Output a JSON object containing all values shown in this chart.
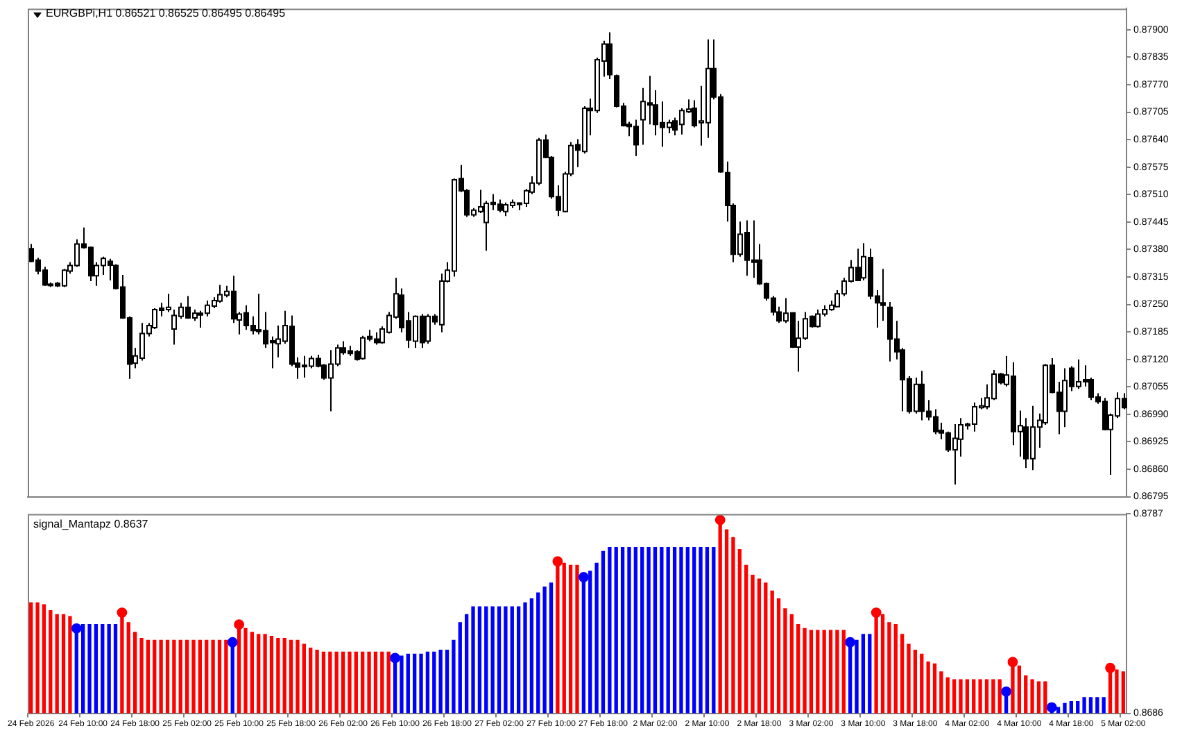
{
  "chart_data": [
    {
      "type": "candlestick",
      "title": "EURGBPi,H1 0.86521 0.86525 0.86495 0.86495",
      "categories": [
        null,
        null,
        null,
        null,
        null,
        null,
        null,
        null,
        null,
        null,
        null,
        null,
        null,
        null,
        null,
        null,
        null,
        null,
        null,
        null,
        null,
        null,
        null,
        null,
        null,
        null,
        null,
        null,
        null,
        null,
        null,
        null,
        null,
        null,
        null,
        null,
        null,
        null,
        null,
        null,
        null,
        null,
        null,
        null,
        null,
        null,
        null,
        null,
        null,
        null,
        null,
        null,
        null,
        null,
        null,
        null,
        null,
        null,
        null,
        null,
        null,
        null,
        null,
        null,
        null,
        null,
        null,
        null,
        null,
        null,
        null,
        null,
        null,
        null,
        null,
        null,
        null,
        null,
        null,
        null,
        null,
        null,
        null,
        null,
        null,
        null,
        null,
        null,
        null,
        null,
        null,
        null,
        null,
        null,
        null,
        null,
        null,
        null,
        null,
        null,
        null,
        null,
        null,
        null,
        null,
        null,
        null,
        null,
        null,
        null,
        null,
        null,
        null,
        null,
        null,
        null,
        null,
        null,
        null,
        null,
        null,
        null,
        null,
        null,
        null,
        null,
        null,
        null,
        null,
        null,
        null,
        null,
        null,
        null,
        null,
        null,
        null,
        null,
        null,
        null,
        null,
        null,
        null,
        null,
        null,
        null,
        null,
        null,
        null,
        null,
        null,
        null,
        null,
        null,
        null,
        null,
        null,
        null,
        null,
        null,
        null,
        null,
        null,
        null,
        null,
        null,
        null,
        null,
        null
      ],
      "ohlc": [
        [
          0.87382,
          0.87393,
          0.8735,
          0.87352
        ],
        [
          0.87355,
          0.8736,
          0.87321,
          0.87329
        ],
        [
          0.87331,
          0.87339,
          0.87294,
          0.87296
        ],
        [
          0.87296,
          0.87302,
          0.87291,
          0.87298
        ],
        [
          0.873,
          0.87303,
          0.87291,
          0.87294
        ],
        [
          0.87294,
          0.87334,
          0.87291,
          0.87331
        ],
        [
          0.87329,
          0.8735,
          0.87323,
          0.87342
        ],
        [
          0.87342,
          0.87404,
          0.87339,
          0.87393
        ],
        [
          0.87393,
          0.87432,
          0.87382,
          0.87385
        ],
        [
          0.87385,
          0.87387,
          0.87305,
          0.87318
        ],
        [
          0.87318,
          0.8735,
          0.87294,
          0.87342
        ],
        [
          0.87342,
          0.87363,
          0.8732,
          0.87359
        ],
        [
          0.87352,
          0.87358,
          0.87307,
          0.87343
        ],
        [
          0.87342,
          0.87345,
          0.87286,
          0.87288
        ],
        [
          0.87291,
          0.8732,
          0.87216,
          0.87218
        ],
        [
          0.87218,
          0.87222,
          0.87074,
          0.87109
        ],
        [
          0.87111,
          0.87147,
          0.87099,
          0.87128
        ],
        [
          0.87123,
          0.87206,
          0.87117,
          0.87181
        ],
        [
          0.87181,
          0.87206,
          0.87174,
          0.872
        ],
        [
          0.87195,
          0.87241,
          0.87192,
          0.87238
        ],
        [
          0.87241,
          0.87254,
          0.87222,
          0.87236
        ],
        [
          0.87238,
          0.87275,
          0.87232,
          0.87243
        ],
        [
          0.87192,
          0.87238,
          0.87155,
          0.87224
        ],
        [
          0.87222,
          0.87254,
          0.87216,
          0.87243
        ],
        [
          0.87243,
          0.8727,
          0.87216,
          0.87218
        ],
        [
          0.87218,
          0.87238,
          0.87211,
          0.87229
        ],
        [
          0.87229,
          0.87235,
          0.87195,
          0.87225
        ],
        [
          0.87229,
          0.87259,
          0.87222,
          0.87248
        ],
        [
          0.87246,
          0.87267,
          0.87241,
          0.87259
        ],
        [
          0.87258,
          0.87296,
          0.87254,
          0.87273
        ],
        [
          0.87272,
          0.87294,
          0.87267,
          0.87281
        ],
        [
          0.87281,
          0.87318,
          0.87206,
          0.87216
        ],
        [
          0.87213,
          0.87232,
          0.87179,
          0.87227
        ],
        [
          0.8723,
          0.87248,
          0.8719,
          0.872
        ],
        [
          0.872,
          0.87222,
          0.87179,
          0.87188
        ],
        [
          0.8719,
          0.87275,
          0.87179,
          0.87186
        ],
        [
          0.87188,
          0.87232,
          0.87147,
          0.87157
        ],
        [
          0.87164,
          0.87174,
          0.87099,
          0.8716
        ],
        [
          0.87157,
          0.872,
          0.87125,
          0.87168
        ],
        [
          0.87163,
          0.87235,
          0.87157,
          0.872
        ],
        [
          0.87198,
          0.87224,
          0.87104,
          0.87109
        ],
        [
          0.87111,
          0.87125,
          0.87074,
          0.87102
        ],
        [
          0.87104,
          0.87128,
          0.87077,
          0.87106
        ],
        [
          0.87104,
          0.87128,
          0.87099,
          0.87122
        ],
        [
          0.87122,
          0.87131,
          0.87101,
          0.87104
        ],
        [
          0.87106,
          0.87109,
          0.87072,
          0.87076
        ],
        [
          0.87076,
          0.87142,
          0.86997,
          0.87109
        ],
        [
          0.87109,
          0.87155,
          0.87104,
          0.87147
        ],
        [
          0.87147,
          0.87163,
          0.87131,
          0.87136
        ],
        [
          0.8714,
          0.87152,
          0.87128,
          0.87134
        ],
        [
          0.87138,
          0.87142,
          0.87117,
          0.8712
        ],
        [
          0.87122,
          0.87176,
          0.87119,
          0.87171
        ],
        [
          0.87174,
          0.8719,
          0.87163,
          0.87168
        ],
        [
          0.87168,
          0.87184,
          0.87155,
          0.8716
        ],
        [
          0.8716,
          0.87198,
          0.87157,
          0.87192
        ],
        [
          0.87184,
          0.87232,
          0.87181,
          0.87224
        ],
        [
          0.8722,
          0.87313,
          0.87216,
          0.87275
        ],
        [
          0.87272,
          0.87288,
          0.87184,
          0.87195
        ],
        [
          0.87211,
          0.87232,
          0.87147,
          0.87166
        ],
        [
          0.87163,
          0.87224,
          0.87147,
          0.87222
        ],
        [
          0.87222,
          0.87227,
          0.87147,
          0.8716
        ],
        [
          0.87163,
          0.87227,
          0.87157,
          0.87222
        ],
        [
          0.87222,
          0.87227,
          0.87202,
          0.87209
        ],
        [
          0.87202,
          0.87323,
          0.87184,
          0.87305
        ],
        [
          0.87305,
          0.8735,
          0.87302,
          0.87331
        ],
        [
          0.87329,
          0.87548,
          0.87316,
          0.87545
        ],
        [
          0.87548,
          0.8758,
          0.87516,
          0.87519
        ],
        [
          0.87519,
          0.87523,
          0.87457,
          0.87462
        ],
        [
          0.87462,
          0.87478,
          0.87457,
          0.87473
        ],
        [
          0.8747,
          0.87521,
          0.87466,
          0.87481
        ],
        [
          0.87444,
          0.87495,
          0.87377,
          0.87489
        ],
        [
          0.87491,
          0.87511,
          0.87473,
          0.87487
        ],
        [
          0.87487,
          0.87498,
          0.87468,
          0.87473
        ],
        [
          0.8747,
          0.87491,
          0.87459,
          0.87486
        ],
        [
          0.87484,
          0.87498,
          0.87478,
          0.87491
        ],
        [
          0.87488,
          0.87491,
          0.87473,
          0.8749
        ],
        [
          0.87489,
          0.87523,
          0.87481,
          0.87519
        ],
        [
          0.87516,
          0.87553,
          0.87511,
          0.87537
        ],
        [
          0.87537,
          0.87644,
          0.87532,
          0.87639
        ],
        [
          0.87639,
          0.87652,
          0.87596,
          0.87598
        ],
        [
          0.87598,
          0.87601,
          0.875,
          0.87505
        ],
        [
          0.87505,
          0.87532,
          0.87459,
          0.87473
        ],
        [
          0.8747,
          0.87564,
          0.87468,
          0.87559
        ],
        [
          0.87559,
          0.87634,
          0.87553,
          0.87626
        ],
        [
          0.87628,
          0.87641,
          0.87575,
          0.87615
        ],
        [
          0.87612,
          0.87719,
          0.87607,
          0.87714
        ],
        [
          0.87714,
          0.87737,
          0.8765,
          0.87709
        ],
        [
          0.87709,
          0.87834,
          0.87703,
          0.87829
        ],
        [
          0.87826,
          0.87874,
          0.87789,
          0.87866
        ],
        [
          0.87866,
          0.87894,
          0.87783,
          0.87794
        ],
        [
          0.87791,
          0.87794,
          0.87716,
          0.87719
        ],
        [
          0.87719,
          0.87727,
          0.87671,
          0.87673
        ],
        [
          0.87676,
          0.87682,
          0.87648,
          0.87671
        ],
        [
          0.87671,
          0.87687,
          0.87601,
          0.87628
        ],
        [
          0.87687,
          0.87762,
          0.87628,
          0.8773
        ],
        [
          0.87727,
          0.87791,
          0.87676,
          0.87722
        ],
        [
          0.87722,
          0.87757,
          0.8765,
          0.87676
        ],
        [
          0.8768,
          0.8773,
          0.87623,
          0.87669
        ],
        [
          0.87669,
          0.87687,
          0.87655,
          0.8768
        ],
        [
          0.87684,
          0.87692,
          0.8765,
          0.87663
        ],
        [
          0.87676,
          0.87714,
          0.87652,
          0.87709
        ],
        [
          0.87706,
          0.87735,
          0.87703,
          0.87712
        ],
        [
          0.87714,
          0.87733,
          0.87669,
          0.87673
        ],
        [
          0.8768,
          0.87767,
          0.87626,
          0.87684
        ],
        [
          0.8768,
          0.87877,
          0.87644,
          0.87808
        ],
        [
          0.87808,
          0.87877,
          0.87735,
          0.87741
        ],
        [
          0.87741,
          0.87748,
          0.87562,
          0.87564
        ],
        [
          0.87562,
          0.87588,
          0.87446,
          0.87484
        ],
        [
          0.87484,
          0.87489,
          0.8735,
          0.87369
        ],
        [
          0.87369,
          0.87446,
          0.87363,
          0.87416
        ],
        [
          0.8742,
          0.87449,
          0.87318,
          0.87355
        ],
        [
          0.87355,
          0.87449,
          0.87313,
          0.8735
        ],
        [
          0.87355,
          0.87393,
          0.87296,
          0.87299
        ],
        [
          0.87299,
          0.87302,
          0.87259,
          0.87265
        ],
        [
          0.87265,
          0.8727,
          0.87224,
          0.87232
        ],
        [
          0.87232,
          0.87245,
          0.87206,
          0.87211
        ],
        [
          0.87211,
          0.87265,
          0.87206,
          0.87229
        ],
        [
          0.8723,
          0.8723,
          0.87147,
          0.87149
        ],
        [
          0.87149,
          0.87211,
          0.87091,
          0.8717
        ],
        [
          0.8717,
          0.87232,
          0.87166,
          0.87216
        ],
        [
          0.87222,
          0.87224,
          0.87195,
          0.87198
        ],
        [
          0.87198,
          0.87238,
          0.87195,
          0.87227
        ],
        [
          0.87227,
          0.87248,
          0.87222,
          0.87238
        ],
        [
          0.87238,
          0.87259,
          0.87235,
          0.87248
        ],
        [
          0.87245,
          0.87284,
          0.87243,
          0.87275
        ],
        [
          0.87275,
          0.87313,
          0.8727,
          0.87305
        ],
        [
          0.87305,
          0.87355,
          0.87302,
          0.87337
        ],
        [
          0.87337,
          0.87382,
          0.87305,
          0.87307
        ],
        [
          0.87313,
          0.87395,
          0.87307,
          0.87363
        ],
        [
          0.87361,
          0.87382,
          0.87262,
          0.8727
        ],
        [
          0.8727,
          0.87284,
          0.87195,
          0.87254
        ],
        [
          0.87254,
          0.87334,
          0.87211,
          0.87248
        ],
        [
          0.87243,
          0.87256,
          0.87115,
          0.87168
        ],
        [
          0.87168,
          0.87211,
          0.8712,
          0.87138
        ],
        [
          0.87142,
          0.87147,
          0.86997,
          0.87072
        ],
        [
          0.87074,
          0.8708,
          0.86992,
          0.86997
        ],
        [
          0.86997,
          0.87077,
          0.86992,
          0.87061
        ],
        [
          0.87061,
          0.87093,
          0.86976,
          0.86997
        ],
        [
          0.86997,
          0.87024,
          0.86976,
          0.86984
        ],
        [
          0.86984,
          0.87002,
          0.86943,
          0.86949
        ],
        [
          0.86952,
          0.8697,
          0.86931,
          0.86946
        ],
        [
          0.86946,
          0.86949,
          0.86901,
          0.86906
        ],
        [
          0.86906,
          0.86967,
          0.86824,
          0.86933
        ],
        [
          0.86931,
          0.86981,
          0.8689,
          0.86965
        ],
        [
          0.86963,
          0.8697,
          0.86954,
          0.86967
        ],
        [
          0.86967,
          0.87018,
          0.86949,
          0.87008
        ],
        [
          0.87006,
          0.87029,
          0.87002,
          0.8701
        ],
        [
          0.87008,
          0.87061,
          0.87002,
          0.87029
        ],
        [
          0.87027,
          0.87095,
          0.87024,
          0.87085
        ],
        [
          0.87085,
          0.87088,
          0.87061,
          0.87065
        ],
        [
          0.87061,
          0.87128,
          0.87056,
          0.87083
        ],
        [
          0.8708,
          0.87113,
          0.86917,
          0.86949
        ],
        [
          0.86949,
          0.86999,
          0.8689,
          0.86963
        ],
        [
          0.8696,
          0.86981,
          0.86863,
          0.86885
        ],
        [
          0.86885,
          0.8701,
          0.86858,
          0.8696
        ],
        [
          0.8696,
          0.86992,
          0.86911,
          0.86976
        ],
        [
          0.8697,
          0.87109,
          0.86965,
          0.87106
        ],
        [
          0.87106,
          0.87123,
          0.8704,
          0.87042
        ],
        [
          0.87042,
          0.87067,
          0.86943,
          0.86997
        ],
        [
          0.86997,
          0.87099,
          0.8696,
          0.8707
        ],
        [
          0.87099,
          0.87104,
          0.87045,
          0.87056
        ],
        [
          0.87056,
          0.8712,
          0.8705,
          0.87067
        ],
        [
          0.87072,
          0.87106,
          0.87056,
          0.87067
        ],
        [
          0.87072,
          0.87077,
          0.87024,
          0.87031
        ],
        [
          0.87031,
          0.8704,
          0.87015,
          0.8702
        ],
        [
          0.8702,
          0.87029,
          0.86952,
          0.86954
        ],
        [
          0.86954,
          0.86992,
          0.86847,
          0.86988
        ],
        [
          0.86986,
          0.87042,
          0.86981,
          0.87027
        ],
        [
          0.87027,
          0.8704,
          0.87002,
          0.87006
        ]
      ],
      "ylim": [
        0.86795,
        0.8795
      ],
      "yticks": [
        {
          "value": 0.879,
          "label": "0.87900"
        },
        0.87835,
        {
          "value": 0.8777,
          "label": "0.87770"
        },
        0.87705,
        {
          "value": 0.8764,
          "label": "0.87640"
        },
        0.87575,
        {
          "value": 0.8751,
          "label": "0.87510"
        },
        0.87445,
        {
          "value": 0.8738,
          "label": "0.87380"
        },
        0.87315,
        {
          "value": 0.8725,
          "label": "0.87250"
        },
        0.87185,
        {
          "value": 0.8712,
          "label": "0.87120"
        },
        0.87055,
        {
          "value": 0.8699,
          "label": "0.86990"
        },
        0.86925,
        {
          "value": 0.8686,
          "label": "0.86860"
        },
        0.86795
      ],
      "tick_labels": "y"
    },
    {
      "type": "bar",
      "title": "signal_Mantapz 0.8637",
      "categories": [
        "24 Feb 2026",
        null,
        null,
        null,
        null,
        null,
        null,
        null,
        "24 Feb 10:00",
        null,
        null,
        null,
        null,
        null,
        null,
        null,
        "24 Feb 18:00",
        null,
        null,
        null,
        null,
        null,
        null,
        null,
        "25 Feb 02:00",
        null,
        null,
        null,
        null,
        null,
        null,
        null,
        "25 Feb 10:00",
        null,
        null,
        null,
        null,
        null,
        null,
        null,
        "25 Feb 18:00",
        null,
        null,
        null,
        null,
        null,
        null,
        null,
        "26 Feb 02:00",
        null,
        null,
        null,
        null,
        null,
        null,
        null,
        "26 Feb 10:00",
        null,
        null,
        null,
        null,
        null,
        null,
        null,
        "26 Feb 18:00",
        null,
        null,
        null,
        null,
        null,
        null,
        null,
        "27 Feb 02:00",
        null,
        null,
        null,
        null,
        null,
        null,
        null,
        "27 Feb 10:00",
        null,
        null,
        null,
        null,
        null,
        null,
        null,
        "27 Feb 18:00",
        null,
        null,
        null,
        null,
        null,
        null,
        null,
        "2 Mar 02:00",
        null,
        null,
        null,
        null,
        null,
        null,
        null,
        "2 Mar 10:00",
        null,
        null,
        null,
        null,
        null,
        null,
        null,
        "2 Mar 18:00",
        null,
        null,
        null,
        null,
        null,
        null,
        null,
        "3 Mar 02:00",
        null,
        null,
        null,
        null,
        null,
        null,
        null,
        "3 Mar 10:00",
        null,
        null,
        null,
        null,
        null,
        null,
        null,
        "3 Mar 18:00",
        null,
        null,
        null,
        null,
        null,
        null,
        null,
        "4 Mar 02:00",
        null,
        null,
        null,
        null,
        null,
        null,
        null,
        "4 Mar 10:00",
        null,
        null,
        null,
        null,
        null,
        null,
        null,
        "4 Mar 18:00",
        null,
        null,
        null,
        null,
        null,
        null,
        null,
        "5 Mar 02:00"
      ],
      "series": [
        {
          "type": "bar",
          "values": [
            0.8742,
            0.8742,
            0.8741,
            0.8738,
            0.8736,
            0.8736,
            0.8735,
            0.8729,
            0.8731,
            0.8731,
            0.8731,
            0.8731,
            0.8731,
            0.8731,
            0.8737,
            0.8732,
            0.8727,
            0.8724,
            0.8723,
            0.8723,
            0.8723,
            0.8723,
            0.8723,
            0.8723,
            0.8723,
            0.8723,
            0.8723,
            0.8723,
            0.8723,
            0.8723,
            0.8723,
            0.8722,
            0.8731,
            0.8729,
            0.8727,
            0.8726,
            0.8726,
            0.8725,
            0.8724,
            0.8724,
            0.8723,
            0.8723,
            0.8721,
            0.8719,
            0.8718,
            0.8717,
            0.8717,
            0.8717,
            0.8717,
            0.8717,
            0.8717,
            0.8717,
            0.8717,
            0.8717,
            0.8717,
            0.8717,
            0.8714,
            0.8715,
            0.8716,
            0.8716,
            0.8716,
            0.8717,
            0.8717,
            0.8718,
            0.8718,
            0.8723,
            0.8732,
            0.8736,
            0.874,
            0.874,
            0.874,
            0.874,
            0.874,
            0.874,
            0.874,
            0.874,
            0.8742,
            0.8744,
            0.8747,
            0.875,
            0.8752,
            0.8763,
            0.8762,
            0.8761,
            0.8761,
            0.8755,
            0.8758,
            0.8762,
            0.8768,
            0.877,
            0.877,
            0.877,
            0.877,
            0.877,
            0.877,
            0.877,
            0.877,
            0.877,
            0.877,
            0.877,
            0.877,
            0.877,
            0.877,
            0.877,
            0.877,
            0.877,
            0.8784,
            0.8779,
            0.8775,
            0.8769,
            0.8761,
            0.8756,
            0.8754,
            0.8752,
            0.8748,
            0.8744,
            0.8739,
            0.8736,
            0.8731,
            0.8729,
            0.8728,
            0.8728,
            0.8728,
            0.8728,
            0.8728,
            0.8728,
            0.8722,
            0.8723,
            0.8726,
            0.8726,
            0.8737,
            0.8736,
            0.8732,
            0.8731,
            0.8726,
            0.8721,
            0.8718,
            0.8716,
            0.8712,
            0.8711,
            0.8707,
            0.8704,
            0.8703,
            0.8703,
            0.8703,
            0.8703,
            0.8703,
            0.8703,
            0.8703,
            0.8703,
            0.8697,
            0.8712,
            0.871,
            0.8705,
            0.8703,
            0.8702,
            0.8702,
            0.8689,
            0.8689,
            0.8691,
            0.8692,
            0.8692,
            0.8694,
            0.8694,
            0.8694,
            0.8694,
            0.8709,
            0.8708,
            0.8707
          ],
          "colors": [
            "#ff0000",
            "#ff0000",
            "#ff0000",
            "#ff0000",
            "#ff0000",
            "#ff0000",
            "#ff0000",
            "#0000ff",
            "#0000ff",
            "#0000ff",
            "#0000ff",
            "#0000ff",
            "#0000ff",
            "#0000ff",
            "#ff0000",
            "#ff0000",
            "#ff0000",
            "#ff0000",
            "#ff0000",
            "#ff0000",
            "#ff0000",
            "#ff0000",
            "#ff0000",
            "#ff0000",
            "#ff0000",
            "#ff0000",
            "#ff0000",
            "#ff0000",
            "#ff0000",
            "#ff0000",
            "#ff0000",
            "#0000ff",
            "#ff0000",
            "#ff0000",
            "#ff0000",
            "#ff0000",
            "#ff0000",
            "#ff0000",
            "#ff0000",
            "#ff0000",
            "#ff0000",
            "#ff0000",
            "#ff0000",
            "#ff0000",
            "#ff0000",
            "#ff0000",
            "#ff0000",
            "#ff0000",
            "#ff0000",
            "#ff0000",
            "#ff0000",
            "#ff0000",
            "#ff0000",
            "#ff0000",
            "#ff0000",
            "#ff0000",
            "#0000ff",
            "#0000ff",
            "#0000ff",
            "#0000ff",
            "#0000ff",
            "#0000ff",
            "#0000ff",
            "#0000ff",
            "#0000ff",
            "#0000ff",
            "#0000ff",
            "#0000ff",
            "#0000ff",
            "#0000ff",
            "#0000ff",
            "#0000ff",
            "#0000ff",
            "#0000ff",
            "#0000ff",
            "#0000ff",
            "#0000ff",
            "#0000ff",
            "#0000ff",
            "#0000ff",
            "#0000ff",
            "#ff0000",
            "#ff0000",
            "#ff0000",
            "#ff0000",
            "#0000ff",
            "#0000ff",
            "#0000ff",
            "#0000ff",
            "#0000ff",
            "#0000ff",
            "#0000ff",
            "#0000ff",
            "#0000ff",
            "#0000ff",
            "#0000ff",
            "#0000ff",
            "#0000ff",
            "#0000ff",
            "#0000ff",
            "#0000ff",
            "#0000ff",
            "#0000ff",
            "#0000ff",
            "#0000ff",
            "#0000ff",
            "#ff0000",
            "#ff0000",
            "#ff0000",
            "#ff0000",
            "#ff0000",
            "#ff0000",
            "#ff0000",
            "#ff0000",
            "#ff0000",
            "#ff0000",
            "#ff0000",
            "#ff0000",
            "#ff0000",
            "#ff0000",
            "#ff0000",
            "#ff0000",
            "#ff0000",
            "#ff0000",
            "#ff0000",
            "#ff0000",
            "#0000ff",
            "#0000ff",
            "#0000ff",
            "#0000ff",
            "#ff0000",
            "#ff0000",
            "#ff0000",
            "#ff0000",
            "#ff0000",
            "#ff0000",
            "#ff0000",
            "#ff0000",
            "#ff0000",
            "#ff0000",
            "#ff0000",
            "#ff0000",
            "#ff0000",
            "#ff0000",
            "#ff0000",
            "#ff0000",
            "#ff0000",
            "#ff0000",
            "#ff0000",
            "#ff0000",
            "#0000ff",
            "#ff0000",
            "#ff0000",
            "#ff0000",
            "#ff0000",
            "#ff0000",
            "#ff0000",
            "#0000ff",
            "#0000ff",
            "#0000ff",
            "#0000ff",
            "#0000ff",
            "#0000ff",
            "#0000ff",
            "#0000ff",
            "#0000ff",
            "#ff0000",
            "#ff0000",
            "#ff0000"
          ]
        },
        {
          "type": "scatter",
          "color": "#ff0000",
          "values": [
            null,
            null,
            null,
            null,
            null,
            null,
            null,
            null,
            null,
            null,
            null,
            null,
            null,
            null,
            0.8737,
            null,
            null,
            null,
            null,
            null,
            null,
            null,
            null,
            null,
            null,
            null,
            null,
            null,
            null,
            null,
            null,
            null,
            0.8731,
            null,
            null,
            null,
            null,
            null,
            null,
            null,
            null,
            null,
            null,
            null,
            null,
            null,
            null,
            null,
            null,
            null,
            null,
            null,
            null,
            null,
            null,
            null,
            null,
            null,
            null,
            null,
            null,
            null,
            null,
            null,
            null,
            null,
            null,
            null,
            null,
            null,
            null,
            null,
            null,
            null,
            null,
            null,
            null,
            null,
            null,
            null,
            null,
            0.8763,
            null,
            null,
            null,
            null,
            null,
            null,
            null,
            null,
            null,
            null,
            null,
            null,
            null,
            null,
            null,
            null,
            null,
            null,
            null,
            null,
            null,
            null,
            null,
            null,
            0.8784,
            null,
            null,
            null,
            null,
            null,
            null,
            null,
            null,
            null,
            null,
            null,
            null,
            null,
            null,
            null,
            null,
            null,
            null,
            null,
            null,
            null,
            null,
            null,
            0.8737,
            null,
            null,
            null,
            null,
            null,
            null,
            null,
            null,
            null,
            null,
            null,
            null,
            null,
            null,
            null,
            null,
            null,
            null,
            null,
            null,
            0.8712,
            null,
            null,
            null,
            null,
            null,
            null,
            null,
            null,
            null,
            null,
            null,
            null,
            null,
            null,
            0.8709,
            null,
            null
          ]
        },
        {
          "type": "scatter",
          "color": "#0000ff",
          "values": [
            null,
            null,
            null,
            null,
            null,
            null,
            null,
            0.8729,
            null,
            null,
            null,
            null,
            null,
            null,
            null,
            null,
            null,
            null,
            null,
            null,
            null,
            null,
            null,
            null,
            null,
            null,
            null,
            null,
            null,
            null,
            null,
            0.8722,
            null,
            null,
            null,
            null,
            null,
            null,
            null,
            null,
            null,
            null,
            null,
            null,
            null,
            null,
            null,
            null,
            null,
            null,
            null,
            null,
            null,
            null,
            null,
            null,
            0.8714,
            null,
            null,
            null,
            null,
            null,
            null,
            null,
            null,
            null,
            null,
            null,
            null,
            null,
            null,
            null,
            null,
            null,
            null,
            null,
            null,
            null,
            null,
            null,
            null,
            null,
            null,
            null,
            null,
            0.8755,
            null,
            null,
            null,
            null,
            null,
            null,
            null,
            null,
            null,
            null,
            null,
            null,
            null,
            null,
            null,
            null,
            null,
            null,
            null,
            null,
            null,
            null,
            null,
            null,
            null,
            null,
            null,
            null,
            null,
            null,
            null,
            null,
            null,
            null,
            null,
            null,
            null,
            null,
            null,
            null,
            0.8722,
            null,
            null,
            null,
            null,
            null,
            null,
            null,
            null,
            null,
            null,
            null,
            null,
            null,
            null,
            null,
            null,
            null,
            null,
            null,
            null,
            null,
            null,
            null,
            0.8697,
            null,
            null,
            null,
            null,
            null,
            null,
            0.8689,
            null,
            null,
            null,
            null,
            null,
            null,
            null,
            null,
            null,
            null,
            null
          ]
        }
      ],
      "ylim": [
        0.8686,
        0.8787
      ],
      "yticks": [
        0.8686,
        0.8787
      ],
      "marker": "circle"
    }
  ]
}
